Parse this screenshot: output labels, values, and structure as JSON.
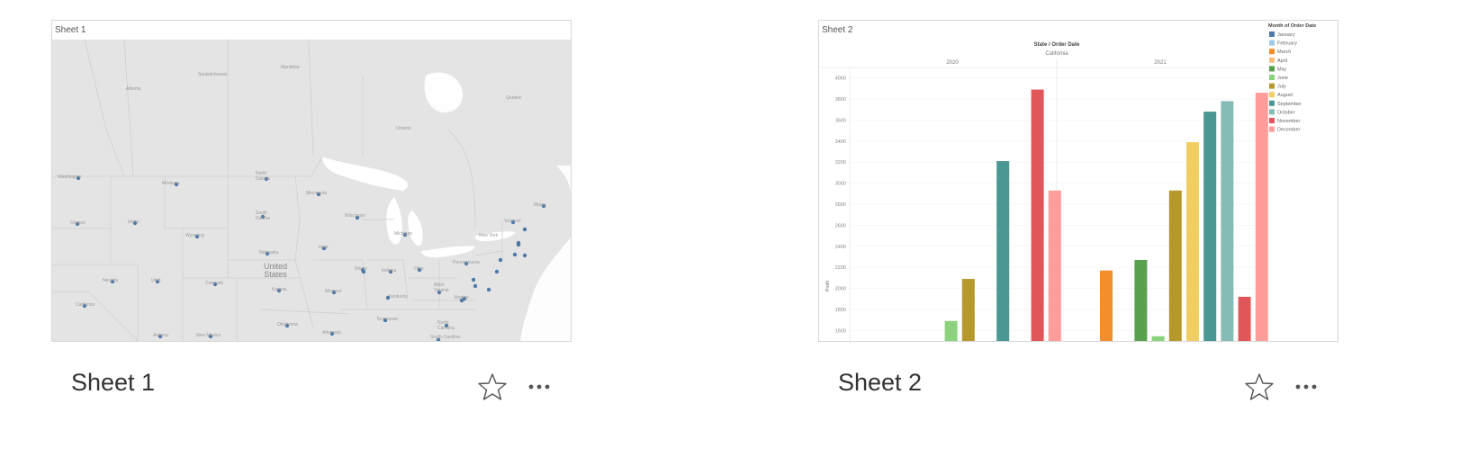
{
  "cards": [
    {
      "name": "Sheet 1",
      "thumbnail_title": "Sheet 1",
      "map": {
        "country_label": "United States",
        "labels": [
          "Alberta",
          "Saskatchewan",
          "Manitoba",
          "Ontario",
          "Quebec",
          "Washington",
          "Montana",
          "North Dakota",
          "Minnesota",
          "Oregon",
          "Idaho",
          "South Dakota",
          "Wisconsin",
          "Wyoming",
          "Iowa",
          "Michigan",
          "Nebraska",
          "Illinois",
          "Indiana",
          "Ohio",
          "Pennsylvania",
          "Nevada",
          "Utah",
          "Colorado",
          "Kansas",
          "Missouri",
          "Kentucky",
          "West Virginia",
          "Virginia",
          "California",
          "Arizona",
          "New Mexico",
          "Oklahoma",
          "Tennessee",
          "North Carolina",
          "Arkansas",
          "South Carolina",
          "Vermont",
          "New York",
          "Maine"
        ],
        "marker_color": "#4e79a7"
      }
    },
    {
      "name": "Sheet 2",
      "thumbnail_title": "Sheet 2"
    }
  ],
  "actions": {
    "favorite_icon": "star-icon",
    "more_icon": "more-icon"
  },
  "chart_data": {
    "type": "bar",
    "header_title": "State / Order Date",
    "panel_label": "California",
    "years": [
      "2020",
      "2021"
    ],
    "ylabel": "Profit",
    "ylim": [
      1500,
      4100
    ],
    "yticks": [
      1600,
      1800,
      2000,
      2200,
      2400,
      2600,
      2800,
      3000,
      3200,
      3400,
      3600,
      3800,
      4000
    ],
    "legend_title": "Month of Order Date",
    "months": [
      "January",
      "February",
      "March",
      "April",
      "May",
      "June",
      "July",
      "August",
      "September",
      "October",
      "November",
      "December"
    ],
    "colors": [
      "#4e79a7",
      "#a0cbe8",
      "#f28e2b",
      "#ffbe7d",
      "#59a14f",
      "#8cd17d",
      "#b6992d",
      "#f1ce63",
      "#499894",
      "#86bcb6",
      "#e15759",
      "#ff9d9a"
    ],
    "series": [
      {
        "name": "2020",
        "values": [
          null,
          null,
          null,
          null,
          null,
          1690,
          2090,
          null,
          3210,
          null,
          3890,
          2930
        ]
      },
      {
        "name": "2021",
        "values": [
          null,
          null,
          2170,
          null,
          2270,
          1545,
          2930,
          3390,
          3680,
          3780,
          1920,
          3860
        ]
      }
    ]
  }
}
